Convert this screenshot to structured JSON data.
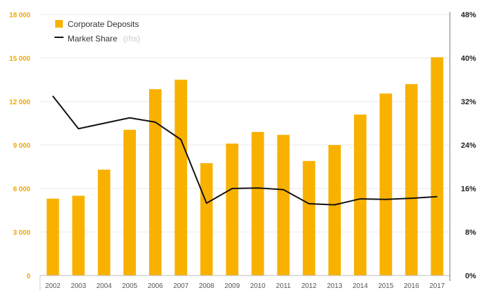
{
  "chart_data": {
    "type": "bar",
    "categories": [
      "2002",
      "2003",
      "2004",
      "2005",
      "2006",
      "2007",
      "2008",
      "2009",
      "2010",
      "2011",
      "2012",
      "2013",
      "2014",
      "2015",
      "2016",
      "2017"
    ],
    "series": [
      {
        "name": "Corporate Deposits",
        "axis": "left",
        "kind": "bar",
        "values": [
          5300,
          5500,
          7300,
          10050,
          12850,
          13500,
          7750,
          9100,
          9900,
          9700,
          7900,
          9000,
          11100,
          12550,
          13200,
          15050
        ]
      },
      {
        "name": "Market Share",
        "axis": "right",
        "kind": "line",
        "values": [
          33.0,
          27.0,
          28.0,
          29.0,
          28.2,
          25.0,
          13.3,
          16.0,
          16.1,
          15.8,
          13.2,
          13.0,
          14.1,
          14.0,
          14.2,
          14.5
        ]
      }
    ],
    "ylim_left": [
      0,
      18000
    ],
    "yticks_left": [
      "0",
      "3 000",
      "6 000",
      "9 000",
      "12 000",
      "15 000",
      "18 000"
    ],
    "ylim_right": [
      0,
      48
    ],
    "yticks_right": [
      "0%",
      "8%",
      "16%",
      "24%",
      "32%",
      "40%",
      "48%"
    ],
    "legend": [
      {
        "label": "Corporate Deposits",
        "suffix": ""
      },
      {
        "label": "Market Share",
        "suffix": "(rhs)"
      }
    ],
    "colors": {
      "bar": "#F9B100",
      "line": "#111111",
      "left_ticks": "#F0A800",
      "grid": "#e8e8e8"
    },
    "title": "",
    "xlabel": "",
    "ylabel": ""
  }
}
